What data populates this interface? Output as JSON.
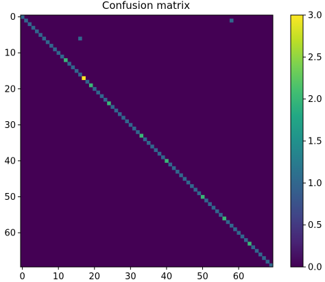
{
  "chart_data": {
    "type": "heatmap",
    "title": "Confusion matrix",
    "size": 70,
    "xlabel": "",
    "ylabel": "",
    "xlim": [
      0,
      69
    ],
    "ylim": [
      0,
      69
    ],
    "x_ticks": [
      0,
      10,
      20,
      30,
      40,
      50,
      60
    ],
    "y_ticks": [
      0,
      10,
      20,
      30,
      40,
      50,
      60
    ],
    "x_tick_labels": [
      "0",
      "10",
      "20",
      "30",
      "40",
      "50",
      "60"
    ],
    "y_tick_labels": [
      "0",
      "10",
      "20",
      "30",
      "40",
      "50",
      "60"
    ],
    "value_range": [
      0,
      3
    ],
    "colormap": "viridis",
    "colorbar": {
      "ticks": [
        0.0,
        0.5,
        1.0,
        1.5,
        2.0,
        2.5,
        3.0
      ],
      "tick_labels": [
        "0.0",
        "0.5",
        "1.0",
        "1.5",
        "2.0",
        "2.5",
        "3.0"
      ]
    },
    "diagonal_default": 1,
    "diagonal_values": [
      {
        "index": 12,
        "value": 2
      },
      {
        "index": 17,
        "value": 3
      },
      {
        "index": 19,
        "value": 2
      },
      {
        "index": 24,
        "value": 2
      },
      {
        "index": 33,
        "value": 2
      },
      {
        "index": 40,
        "value": 2
      },
      {
        "index": 50,
        "value": 2
      },
      {
        "index": 56,
        "value": 2
      },
      {
        "index": 63,
        "value": 2
      }
    ],
    "off_diagonal_cells": [
      {
        "row": 1,
        "col": 58,
        "value": 1
      },
      {
        "row": 6,
        "col": 16,
        "value": 1
      }
    ]
  }
}
